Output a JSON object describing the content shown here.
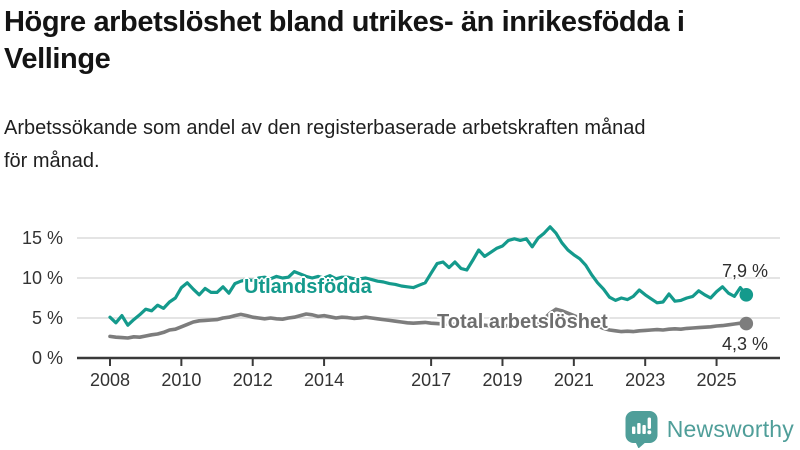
{
  "header": {
    "title_lines": [
      "Högre arbetslöshet bland utrikes- än inrikesfödda i",
      "Vellinge"
    ],
    "subtitle_lines": [
      "Arbetssökande som andel av den registerbaserade arbetskraften månad",
      "för månad."
    ]
  },
  "footer": {
    "brand": "Newsworthy",
    "brand_color": "#4f9e99"
  },
  "chart_data": {
    "type": "line",
    "title": "Högre arbetslöshet bland utrikes- än inrikesfödda i Vellinge",
    "subtitle": "Arbetssökande som andel av den registerbaserade arbetskraften månad för månad.",
    "xlabel": "",
    "ylabel": "",
    "x_start_year": 2008,
    "x_step_years": 0.1666667,
    "x_ticks": [
      2008,
      2010,
      2012,
      2014,
      2017,
      2019,
      2021,
      2023,
      2025
    ],
    "y_ticks": [
      0,
      5,
      10,
      15
    ],
    "y_tick_labels": [
      "0 %",
      "5 %",
      "10 %",
      "15 %"
    ],
    "ylim": [
      0,
      17.5
    ],
    "grid": true,
    "legend_position": "inline-labels",
    "colors": {
      "grid": "#dcdcdc",
      "axis": "#3a3a3a",
      "tick_text": "#333333"
    },
    "series": [
      {
        "name": "Utlandsfödda",
        "color": "#149a8c",
        "end_label": "7,9 %",
        "end_value": 7.9,
        "values": [
          5.1,
          4.4,
          5.3,
          4.1,
          4.8,
          5.4,
          6.1,
          5.9,
          6.6,
          6.2,
          7.0,
          7.5,
          8.8,
          9.4,
          8.6,
          7.9,
          8.7,
          8.2,
          8.2,
          8.9,
          8.1,
          9.3,
          9.6,
          9.8,
          9.7,
          10.0,
          10.1,
          9.9,
          10.2,
          10.0,
          10.1,
          10.8,
          10.5,
          10.2,
          10.0,
          10.2,
          10.0,
          10.3,
          9.9,
          10.1,
          10.1,
          9.9,
          9.9,
          10.0,
          9.8,
          9.6,
          9.5,
          9.3,
          9.2,
          9.0,
          8.9,
          8.8,
          9.1,
          9.4,
          10.6,
          11.8,
          12.0,
          11.3,
          12.0,
          11.2,
          11.0,
          12.2,
          13.5,
          12.7,
          13.2,
          13.7,
          14.0,
          14.7,
          14.9,
          14.7,
          14.9,
          13.9,
          15.0,
          15.6,
          16.4,
          15.6,
          14.4,
          13.5,
          12.9,
          12.4,
          11.6,
          10.4,
          9.4,
          8.6,
          7.6,
          7.2,
          7.5,
          7.3,
          7.7,
          8.5,
          7.9,
          7.4,
          6.9,
          7.0,
          8.0,
          7.1,
          7.2,
          7.5,
          7.7,
          8.4,
          7.9,
          7.5,
          8.3,
          8.9,
          8.1,
          7.7,
          8.8,
          7.9
        ]
      },
      {
        "name": "Total arbetslöshet",
        "color": "#7d7d7d",
        "end_label": "4,3 %",
        "end_value": 4.3,
        "values": [
          2.7,
          2.6,
          2.55,
          2.5,
          2.65,
          2.6,
          2.75,
          2.9,
          3.0,
          3.2,
          3.5,
          3.6,
          3.9,
          4.2,
          4.5,
          4.65,
          4.7,
          4.75,
          4.8,
          5.0,
          5.1,
          5.3,
          5.45,
          5.3,
          5.1,
          5.0,
          4.9,
          5.0,
          4.9,
          4.85,
          5.0,
          5.1,
          5.3,
          5.5,
          5.4,
          5.2,
          5.3,
          5.15,
          5.0,
          5.1,
          5.05,
          4.95,
          5.0,
          5.1,
          5.0,
          4.9,
          4.8,
          4.7,
          4.6,
          4.5,
          4.4,
          4.35,
          4.4,
          4.45,
          4.35,
          4.3,
          4.25,
          4.3,
          4.2,
          4.25,
          4.15,
          4.1,
          4.05,
          4.1,
          4.0,
          4.05,
          4.0,
          4.05,
          4.1,
          4.15,
          4.2,
          4.3,
          4.4,
          4.9,
          5.6,
          6.1,
          5.9,
          5.6,
          5.3,
          5.0,
          4.7,
          4.3,
          4.0,
          3.7,
          3.5,
          3.4,
          3.3,
          3.35,
          3.3,
          3.4,
          3.45,
          3.5,
          3.55,
          3.5,
          3.6,
          3.65,
          3.6,
          3.7,
          3.75,
          3.8,
          3.85,
          3.9,
          4.0,
          4.05,
          4.15,
          4.25,
          4.35,
          4.3
        ]
      }
    ]
  }
}
